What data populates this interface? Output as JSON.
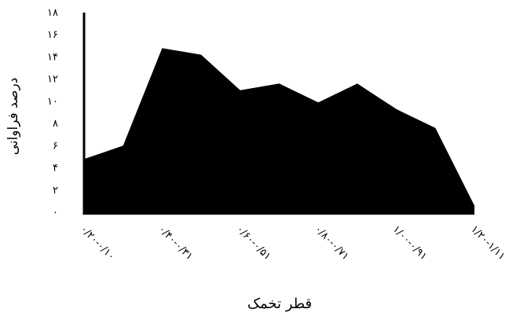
{
  "chart_data": {
    "type": "area",
    "ylabel": "درصد فراوانی",
    "xlabel": "قطر تخمک",
    "x_labels": [
      "۰/۲۰-۰/۱۰",
      "۰/۴۰-۰/۳۱",
      "۰/۶۰-۰/۵۱",
      "۰/۸۰-۰/۷۱",
      "۱/۰۰-۰/۹۱",
      "۱/۲۰-۱/۱۱"
    ],
    "y_tick_labels": [
      "۰",
      "۲",
      "۴",
      "۶",
      "۸",
      "۱۰",
      "۱۲",
      "۱۴",
      "۱۶",
      "۱۸"
    ],
    "y_ticks": [
      0,
      2,
      4,
      6,
      8,
      10,
      12,
      14,
      16,
      18
    ],
    "ylim": [
      0,
      18
    ],
    "values": [
      4.8,
      6.0,
      14.8,
      14.2,
      11.0,
      11.6,
      9.9,
      11.6,
      9.3,
      7.6,
      0.6
    ],
    "grid": false,
    "legend": "none",
    "fill_color": "#000000"
  }
}
